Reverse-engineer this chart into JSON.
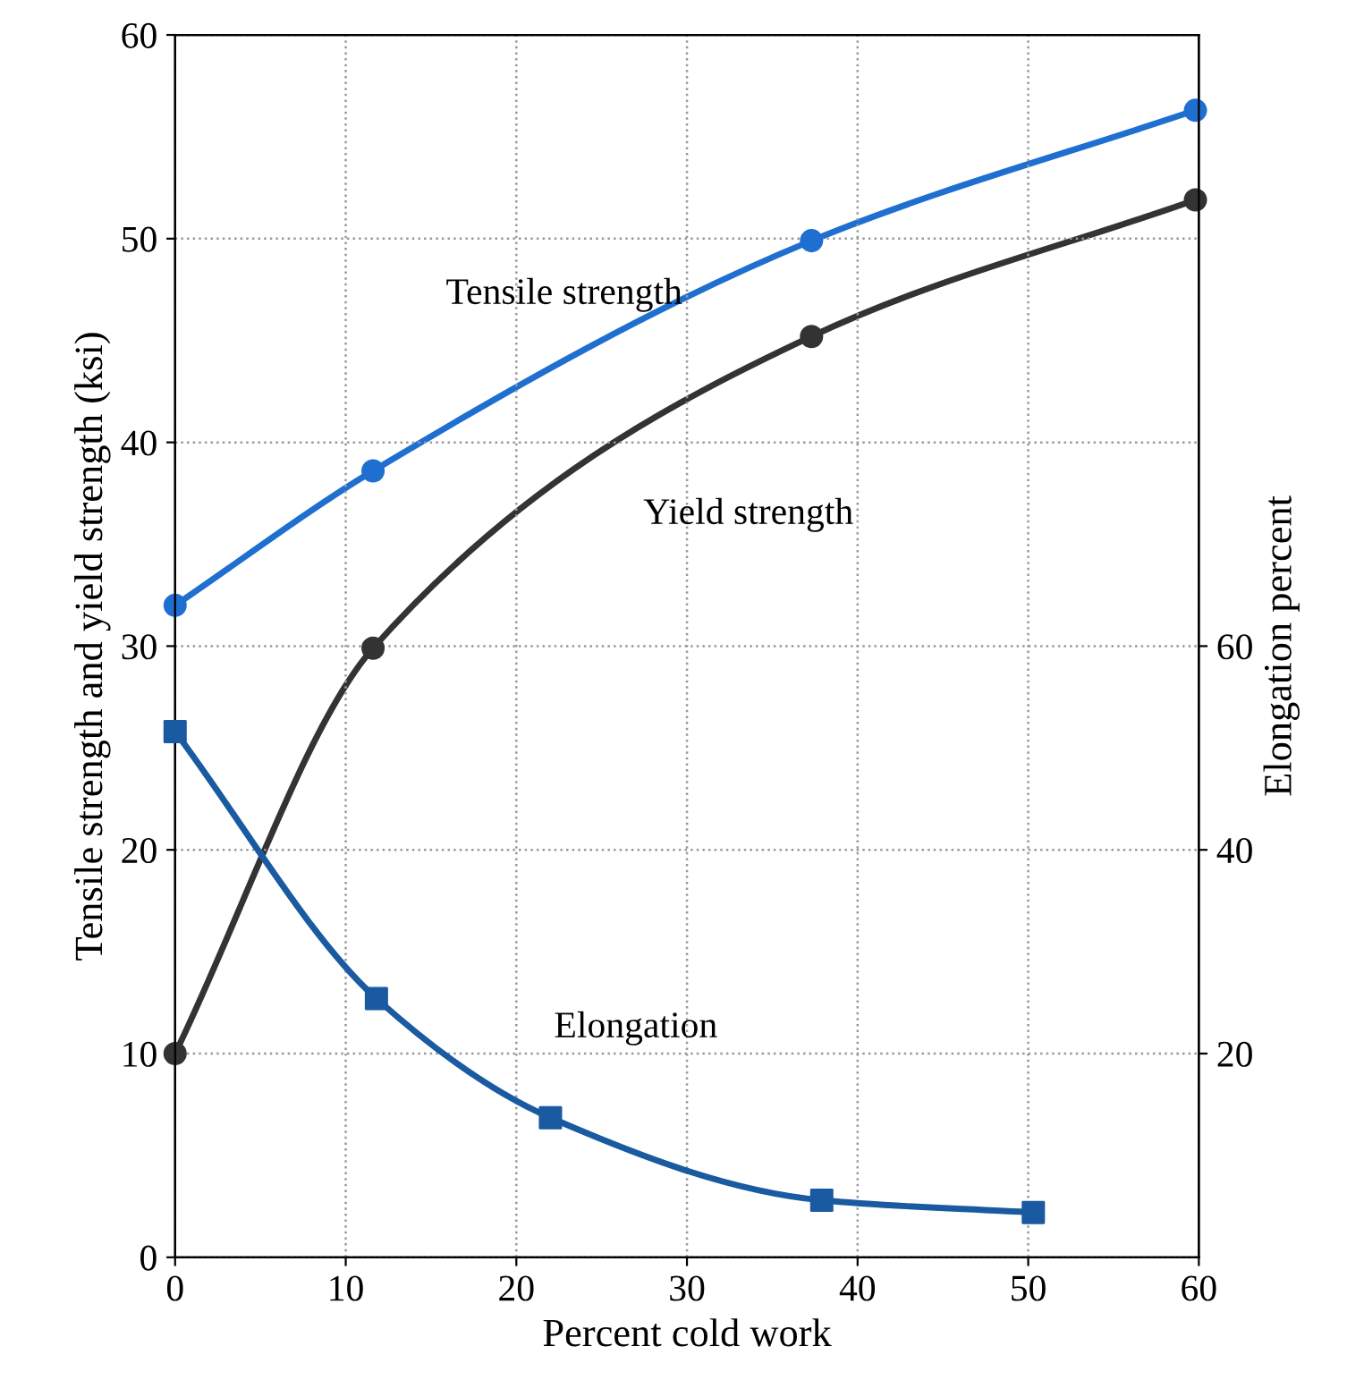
{
  "chart_data": {
    "type": "line",
    "xlabel": "Percent cold work",
    "ylabel": "Tensile strength and yield strength (ksi)",
    "y2label": "Elongation percent",
    "xlim": [
      0,
      60
    ],
    "xticks": [
      0,
      10,
      20,
      30,
      40,
      50,
      60
    ],
    "ylim": [
      0,
      60
    ],
    "yticks": [
      0,
      10,
      20,
      30,
      40,
      50,
      60
    ],
    "y2lim": [
      0,
      120
    ],
    "y2ticks": [
      20,
      40,
      60
    ],
    "grid": true,
    "legend": false,
    "line_style": "solid",
    "series": [
      {
        "name": "Tensile strength",
        "color": "#1f6fd0",
        "marker": "circle",
        "x": [
          0,
          11.6,
          37.3,
          59.8
        ],
        "values": [
          32,
          38.6,
          49.9,
          56.3
        ]
      },
      {
        "name": "Yield strength",
        "color": "#333333",
        "marker": "circle",
        "x": [
          0,
          11.6,
          37.3,
          59.8
        ],
        "values": [
          10,
          29.9,
          45.2,
          51.9
        ]
      },
      {
        "name": "Elongation",
        "color": "#1a5aa0",
        "marker": "square",
        "axis": "y2",
        "x": [
          0,
          11.8,
          22,
          37.9,
          50.3
        ],
        "values": [
          51.6,
          25.4,
          13.7,
          5.6,
          4.4
        ]
      }
    ]
  }
}
